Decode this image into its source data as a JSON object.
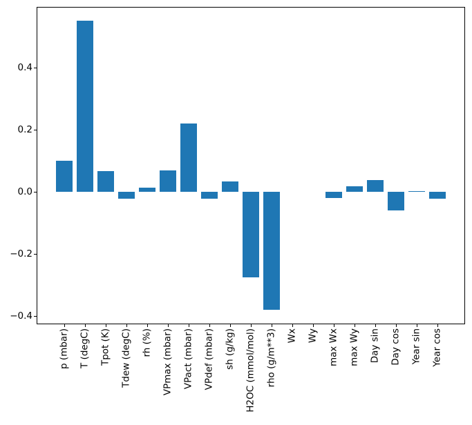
{
  "chart_data": {
    "type": "bar",
    "title": "",
    "xlabel": "",
    "ylabel": "",
    "categories": [
      "p (mbar)",
      "T (degC)",
      "Tpot (K)",
      "Tdew (degC)",
      "rh (%)",
      "VPmax (mbar)",
      "VPact (mbar)",
      "VPdef (mbar)",
      "sh (g/kg)",
      "H2OC (mmol/mol)",
      "rho (g/m**3)",
      "Wx",
      "Wy",
      "max Wx",
      "max Wy",
      "Day sin",
      "Day cos",
      "Year sin",
      "Year cos"
    ],
    "values": [
      0.1,
      0.551,
      0.066,
      -0.022,
      0.013,
      0.07,
      0.22,
      -0.023,
      0.033,
      -0.275,
      -0.381,
      0.0,
      0.0,
      -0.02,
      0.017,
      0.038,
      -0.061,
      0.003,
      -0.023
    ],
    "yticks": [
      0.4,
      0.2,
      0.0,
      -0.2,
      -0.4
    ],
    "ytick_labels": [
      "0.4",
      "0.2",
      "0.0",
      "−0.2",
      "−0.4"
    ],
    "ylim": [
      -0.43,
      0.6
    ],
    "bar_color": "#1f77b4",
    "axis_color": "#000000",
    "background_color": "#ffffff",
    "grid": false,
    "legend": "none",
    "x_label_rotation_deg": 90
  }
}
